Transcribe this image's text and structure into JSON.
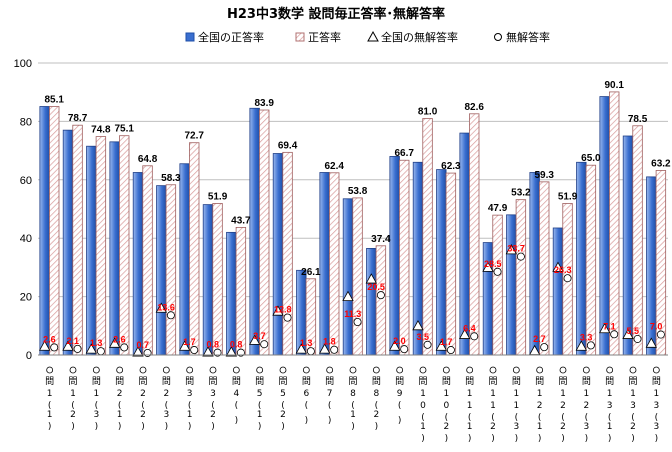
{
  "chart_data": {
    "type": "bar",
    "title": "H23中3数学 設問毎正答率･無解答率",
    "ylim": [
      0,
      100
    ],
    "yticks": [
      0,
      20,
      40,
      60,
      80,
      100
    ],
    "grid": true,
    "legend_position": "top",
    "categories": [
      "問1(1)",
      "問1(2)",
      "問1(3)",
      "問2(1)",
      "問2(2)",
      "問2(3)",
      "問3(1)",
      "問3(2)",
      "問4",
      "問5(1)",
      "問5(2)",
      "問6",
      "問7",
      "問8(1)",
      "問8(2)",
      "問9",
      "問10(1)",
      "問10(2)",
      "問11(1)",
      "問11(2)",
      "問11(3)",
      "問12(1)",
      "問12(2)",
      "問12(3)",
      "問13(1)",
      "問13(2)",
      "問13(3)"
    ],
    "category_labels_vertical": [
      [
        "問",
        "1",
        "(",
        "1",
        ")"
      ],
      [
        "問",
        "1",
        "(",
        "2",
        ")"
      ],
      [
        "問",
        "1",
        "(",
        "3",
        ")"
      ],
      [
        "問",
        "2",
        "(",
        "1",
        ")"
      ],
      [
        "問",
        "2",
        "(",
        "2",
        ")"
      ],
      [
        "問",
        "2",
        "(",
        "3",
        ")"
      ],
      [
        "問",
        "3",
        "(",
        "1",
        ")"
      ],
      [
        "問",
        "3",
        "(",
        "2",
        ")"
      ],
      [
        "問",
        "4",
        "(",
        "",
        ")"
      ],
      [
        "問",
        "5",
        "(",
        "1",
        ")"
      ],
      [
        "問",
        "5",
        "(",
        "2",
        ")"
      ],
      [
        "問",
        "6",
        "(",
        "",
        ")"
      ],
      [
        "問",
        "7",
        "(",
        "",
        ")"
      ],
      [
        "問",
        "8",
        "(",
        "1",
        ")"
      ],
      [
        "問",
        "8",
        "(",
        "2",
        ")"
      ],
      [
        "問",
        "9",
        "(",
        "",
        ")"
      ],
      [
        "問",
        "1",
        "0",
        "(",
        "1",
        ")"
      ],
      [
        "問",
        "1",
        "0",
        "(",
        "2",
        ")"
      ],
      [
        "問",
        "1",
        "1",
        "(",
        "1",
        ")"
      ],
      [
        "問",
        "1",
        "1",
        "(",
        "2",
        ")"
      ],
      [
        "問",
        "1",
        "1",
        "(",
        "3",
        ")"
      ],
      [
        "問",
        "1",
        "2",
        "(",
        "1",
        ")"
      ],
      [
        "問",
        "1",
        "2",
        "(",
        "2",
        ")"
      ],
      [
        "問",
        "1",
        "2",
        "(",
        "3",
        ")"
      ],
      [
        "問",
        "1",
        "3",
        "(",
        "1",
        ")"
      ],
      [
        "問",
        "1",
        "3",
        "(",
        "2",
        ")"
      ],
      [
        "問",
        "1",
        "3",
        "(",
        "3",
        ")"
      ]
    ],
    "series": [
      {
        "name": "全国の正答率",
        "color": "#3366cc",
        "values": [
          85.1,
          77.0,
          71.5,
          73.0,
          62.5,
          58.0,
          65.5,
          51.5,
          42.0,
          84.5,
          69.0,
          29.0,
          62.5,
          53.5,
          36.5,
          68.0,
          66.0,
          63.5,
          76.0,
          38.5,
          48.0,
          62.5,
          43.5,
          66.0,
          88.5,
          75.0,
          61.0
        ]
      },
      {
        "name": "正答率",
        "color": "#cc6666",
        "values": [
          85.1,
          78.7,
          74.8,
          75.1,
          64.8,
          58.3,
          72.7,
          51.9,
          43.7,
          83.9,
          69.4,
          26.1,
          62.4,
          53.8,
          37.4,
          66.7,
          81.0,
          62.3,
          82.6,
          47.9,
          53.2,
          59.3,
          51.9,
          65.0,
          90.1,
          78.5,
          63.2
        ]
      },
      {
        "name": "全国の無解答率",
        "values": [
          3.0,
          3.0,
          2.0,
          4.0,
          1.0,
          16.0,
          3.0,
          1.0,
          1.0,
          5.0,
          15.0,
          2.0,
          2.0,
          20.0,
          26.0,
          3.0,
          10.0,
          3.0,
          7.0,
          30.0,
          36.0,
          1.5,
          30.0,
          3.0,
          9.0,
          7.0,
          4.0
        ]
      },
      {
        "name": "無解答率",
        "values": [
          2.6,
          2.1,
          1.3,
          2.6,
          0.7,
          13.6,
          1.7,
          0.8,
          0.8,
          3.7,
          12.8,
          1.3,
          1.8,
          11.3,
          20.5,
          2.0,
          3.5,
          1.7,
          6.4,
          28.5,
          33.7,
          2.7,
          26.3,
          3.3,
          7.1,
          5.5,
          7.0
        ]
      }
    ],
    "rate_labels": [
      "85.1",
      "78.7",
      "74.8",
      "75.1",
      "64.8",
      "58.3",
      "72.7",
      "51.9",
      "43.7",
      "83.9",
      "69.4",
      "26.1",
      "62.4",
      "53.8",
      "37.4",
      "66.7",
      "81.0",
      "62.3",
      "82.6",
      "47.9",
      "53.2",
      "59.3",
      "51.9",
      "65.0",
      "90.1",
      "78.5",
      "63.2"
    ],
    "nonanswer_labels": [
      "2.6",
      "2.1",
      "1.3",
      "2.6",
      "0.7",
      "13.6",
      "1.7",
      "0.8",
      "0.8",
      "3.7",
      "12.8",
      "1.3",
      "1.8",
      "11.3",
      "20.5",
      "2.0",
      "3.5",
      "1.7",
      "6.4",
      "28.5",
      "33.7",
      "2.7",
      "26.3",
      "3.3",
      "7.1",
      "5.5",
      "7.0"
    ]
  }
}
